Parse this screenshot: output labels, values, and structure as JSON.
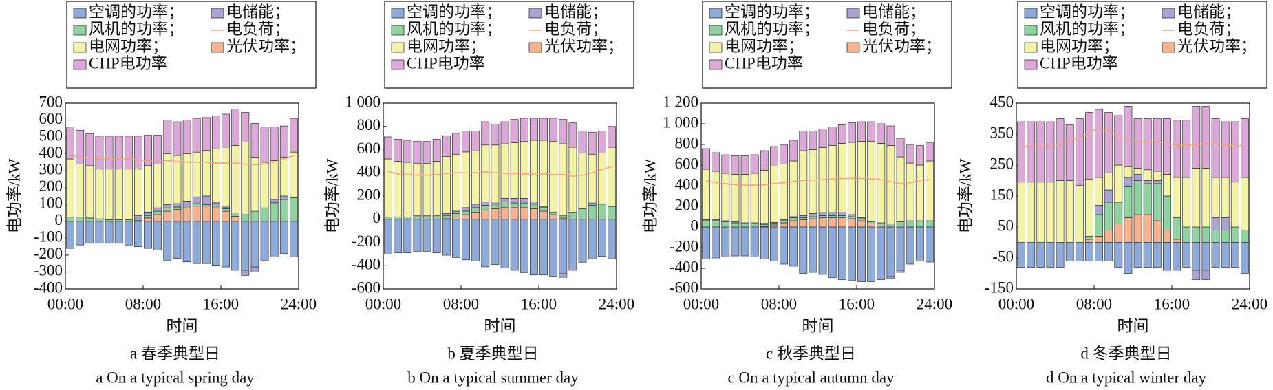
{
  "chart_data": [
    {
      "type": "bar",
      "stacked": true,
      "caption": "a 春季典型日",
      "caption_en": "a On a typical spring day",
      "xlabel": "时间",
      "ylabel": "电功率/kW",
      "x": [
        0,
        1,
        2,
        3,
        4,
        5,
        6,
        7,
        8,
        9,
        10,
        11,
        12,
        13,
        14,
        15,
        16,
        17,
        18,
        19,
        20,
        21,
        22,
        23
      ],
      "xlim": [
        0,
        24
      ],
      "xticks": [
        {
          "value": 0,
          "label": "00:00"
        },
        {
          "value": 8,
          "label": "08:00"
        },
        {
          "value": 16,
          "label": "16:00"
        },
        {
          "value": 24,
          "label": "24:00"
        }
      ],
      "ylim": [
        -400,
        700
      ],
      "yticks": [
        -400,
        -300,
        -200,
        -100,
        0,
        100,
        200,
        300,
        400,
        500,
        600,
        700
      ],
      "series": [
        {
          "name": "空调的功率；",
          "color": "#8eaadb",
          "values": [
            -160,
            -140,
            -130,
            -130,
            -130,
            -130,
            -140,
            -150,
            -160,
            -170,
            -230,
            -220,
            -240,
            -250,
            -250,
            -260,
            -270,
            -290,
            -290,
            -270,
            -230,
            -210,
            -190,
            -210
          ]
        },
        {
          "name": "电储能；",
          "color": "#a9a3d6",
          "values": [
            0,
            0,
            0,
            0,
            0,
            0,
            0,
            20,
            20,
            20,
            20,
            20,
            30,
            40,
            50,
            20,
            10,
            0,
            -30,
            -30,
            0,
            20,
            20,
            0
          ]
        },
        {
          "name": "风机的功率；",
          "color": "#8fd3a0",
          "values": [
            25,
            25,
            20,
            15,
            10,
            10,
            10,
            10,
            15,
            20,
            20,
            15,
            10,
            15,
            10,
            10,
            15,
            20,
            40,
            60,
            80,
            110,
            130,
            140
          ]
        },
        {
          "name": "电负荷；",
          "color": "#f3a07e",
          "type": "line",
          "values": [
            390,
            380,
            375,
            370,
            370,
            370,
            370,
            365,
            360,
            360,
            360,
            355,
            350,
            350,
            350,
            345,
            345,
            345,
            340,
            335,
            340,
            350,
            370,
            390
          ]
        },
        {
          "name": "电网功率；",
          "color": "#f3f3a6",
          "values": [
            345,
            315,
            310,
            295,
            300,
            300,
            300,
            275,
            275,
            260,
            300,
            285,
            280,
            265,
            270,
            320,
            355,
            400,
            430,
            320,
            270,
            230,
            230,
            270
          ]
        },
        {
          "name": "光伏功率；",
          "color": "#f7b18d",
          "values": [
            0,
            0,
            0,
            0,
            0,
            0,
            0,
            5,
            20,
            40,
            60,
            70,
            80,
            90,
            90,
            80,
            60,
            30,
            0,
            0,
            0,
            0,
            0,
            0
          ]
        },
        {
          "name": "CHP电功率",
          "color": "#dca8d8",
          "values": [
            190,
            200,
            190,
            195,
            195,
            195,
            195,
            195,
            180,
            170,
            200,
            200,
            200,
            200,
            195,
            195,
            195,
            215,
            175,
            200,
            210,
            200,
            185,
            200
          ]
        }
      ]
    },
    {
      "type": "bar",
      "stacked": true,
      "caption": "b 夏季典型日",
      "caption_en": "b On a typical summer day",
      "xlabel": "时间",
      "ylabel": "电功率/kW",
      "x": [
        0,
        1,
        2,
        3,
        4,
        5,
        6,
        7,
        8,
        9,
        10,
        11,
        12,
        13,
        14,
        15,
        16,
        17,
        18,
        19,
        20,
        21,
        22,
        23
      ],
      "xlim": [
        0,
        24
      ],
      "xticks": [
        {
          "value": 0,
          "label": "00:00"
        },
        {
          "value": 8,
          "label": "08:00"
        },
        {
          "value": 16,
          "label": "16:00"
        },
        {
          "value": 24,
          "label": "24:00"
        }
      ],
      "ylim": [
        -600,
        1000
      ],
      "yticks": [
        -600,
        -400,
        -200,
        0,
        200,
        400,
        600,
        800,
        {
          "value": 1000,
          "label": "1 000"
        }
      ],
      "series": [
        {
          "name": "空调的功率；",
          "color": "#8eaadb",
          "values": [
            -300,
            -290,
            -290,
            -280,
            -280,
            -290,
            -310,
            -330,
            -350,
            -360,
            -410,
            -390,
            -420,
            -440,
            -460,
            -480,
            -480,
            -490,
            -470,
            -420,
            -370,
            -340,
            -320,
            -340
          ]
        },
        {
          "name": "电储能；",
          "color": "#a9a3d6",
          "values": [
            0,
            0,
            0,
            10,
            10,
            10,
            20,
            20,
            30,
            30,
            30,
            20,
            30,
            40,
            40,
            20,
            10,
            0,
            -30,
            -20,
            0,
            20,
            0,
            0
          ]
        },
        {
          "name": "风机的功率；",
          "color": "#8fd3a0",
          "values": [
            20,
            20,
            20,
            20,
            20,
            20,
            25,
            30,
            30,
            40,
            40,
            40,
            50,
            40,
            40,
            40,
            30,
            20,
            20,
            60,
            90,
            120,
            130,
            110
          ]
        },
        {
          "name": "电负荷；",
          "color": "#f3a07e",
          "type": "line",
          "values": [
            410,
            390,
            385,
            380,
            380,
            385,
            395,
            400,
            400,
            400,
            410,
            400,
            395,
            395,
            390,
            390,
            390,
            385,
            385,
            370,
            380,
            400,
            430,
            450
          ]
        },
        {
          "name": "电网功率；",
          "color": "#f3f3a6",
          "values": [
            500,
            480,
            470,
            450,
            450,
            470,
            490,
            490,
            480,
            460,
            490,
            490,
            470,
            480,
            490,
            530,
            570,
            610,
            620,
            560,
            480,
            420,
            440,
            510
          ]
        },
        {
          "name": "光伏功率；",
          "color": "#f7b18d",
          "values": [
            0,
            0,
            0,
            0,
            0,
            0,
            5,
            20,
            40,
            60,
            80,
            90,
            100,
            100,
            100,
            90,
            70,
            40,
            10,
            0,
            0,
            0,
            0,
            0
          ]
        },
        {
          "name": "CHP电功率",
          "color": "#dca8d8",
          "values": [
            190,
            190,
            190,
            190,
            190,
            190,
            180,
            180,
            180,
            170,
            200,
            180,
            190,
            200,
            200,
            190,
            190,
            200,
            210,
            210,
            190,
            190,
            190,
            180
          ]
        }
      ]
    },
    {
      "type": "bar",
      "stacked": true,
      "caption": "c 秋季典型日",
      "caption_en": "c On a typical autumn day",
      "xlabel": "时间",
      "ylabel": "电功率/kW",
      "x": [
        0,
        1,
        2,
        3,
        4,
        5,
        6,
        7,
        8,
        9,
        10,
        11,
        12,
        13,
        14,
        15,
        16,
        17,
        18,
        19,
        20,
        21,
        22,
        23
      ],
      "xlim": [
        0,
        24
      ],
      "xticks": [
        {
          "value": 0,
          "label": "00:00"
        },
        {
          "value": 8,
          "label": "08:00"
        },
        {
          "value": 16,
          "label": "16:00"
        },
        {
          "value": 24,
          "label": "24:00"
        }
      ],
      "ylim": [
        -600,
        1200
      ],
      "yticks": [
        -600,
        -400,
        -200,
        0,
        200,
        400,
        600,
        800,
        {
          "value": 1000,
          "label": "1 000"
        },
        {
          "value": 1200,
          "label": "1 200"
        }
      ],
      "series": [
        {
          "name": "空调的功率；",
          "color": "#8eaadb",
          "values": [
            -310,
            -300,
            -290,
            -280,
            -280,
            -290,
            -310,
            -330,
            -360,
            -380,
            -450,
            -440,
            -460,
            -490,
            -510,
            -520,
            -530,
            -530,
            -510,
            -480,
            -420,
            -360,
            -330,
            -340
          ]
        },
        {
          "name": "电储能；",
          "color": "#a9a3d6",
          "values": [
            10,
            10,
            10,
            10,
            10,
            10,
            10,
            10,
            10,
            10,
            20,
            30,
            30,
            30,
            30,
            20,
            10,
            0,
            0,
            -20,
            -20,
            0,
            0,
            0
          ]
        },
        {
          "name": "风机的功率；",
          "color": "#8fd3a0",
          "values": [
            60,
            60,
            50,
            40,
            30,
            30,
            20,
            15,
            20,
            30,
            20,
            20,
            20,
            20,
            20,
            20,
            20,
            20,
            30,
            30,
            50,
            60,
            60,
            60
          ]
        },
        {
          "name": "电负荷；",
          "color": "#f3a07e",
          "type": "line",
          "values": [
            450,
            430,
            420,
            410,
            405,
            405,
            410,
            420,
            430,
            440,
            450,
            455,
            460,
            465,
            470,
            470,
            470,
            465,
            460,
            440,
            420,
            430,
            450,
            460
          ]
        },
        {
          "name": "电网功率；",
          "color": "#f3f3a6",
          "values": [
            490,
            470,
            460,
            460,
            470,
            480,
            515,
            545,
            540,
            540,
            630,
            620,
            630,
            650,
            670,
            700,
            740,
            780,
            770,
            760,
            630,
            560,
            540,
            580
          ]
        },
        {
          "name": "光伏功率；",
          "color": "#f7b18d",
          "values": [
            0,
            0,
            0,
            0,
            0,
            0,
            5,
            20,
            40,
            60,
            70,
            80,
            90,
            90,
            90,
            80,
            60,
            30,
            10,
            0,
            0,
            0,
            0,
            0
          ]
        },
        {
          "name": "CHP电功率",
          "color": "#dca8d8",
          "values": [
            200,
            180,
            180,
            180,
            180,
            180,
            190,
            190,
            190,
            200,
            190,
            180,
            180,
            180,
            180,
            190,
            190,
            190,
            190,
            190,
            180,
            180,
            190,
            180
          ]
        }
      ]
    },
    {
      "type": "bar",
      "stacked": true,
      "caption": "d 冬季典型日",
      "caption_en": "d On a typical winter day",
      "xlabel": "时间",
      "ylabel": "电功率/kW",
      "x": [
        0,
        1,
        2,
        3,
        4,
        5,
        6,
        7,
        8,
        9,
        10,
        11,
        12,
        13,
        14,
        15,
        16,
        17,
        18,
        19,
        20,
        21,
        22,
        23
      ],
      "xlim": [
        0,
        24
      ],
      "xticks": [
        {
          "value": 0,
          "label": "00:00"
        },
        {
          "value": 8,
          "label": "08:00"
        },
        {
          "value": 16,
          "label": "16:00"
        },
        {
          "value": 24,
          "label": "24:00"
        }
      ],
      "ylim": [
        -150,
        450
      ],
      "yticks": [
        -150,
        -50,
        50,
        150,
        250,
        350,
        450
      ],
      "series": [
        {
          "name": "空调的功率；",
          "color": "#8eaadb",
          "values": [
            -80,
            -80,
            -80,
            -80,
            -80,
            -60,
            -60,
            -60,
            -60,
            -60,
            -80,
            -100,
            -80,
            -80,
            -80,
            -90,
            -90,
            -80,
            -90,
            -90,
            -80,
            -80,
            -80,
            -100
          ]
        },
        {
          "name": "电储能；",
          "color": "#a9a3d6",
          "values": [
            0,
            0,
            0,
            0,
            0,
            0,
            0,
            0,
            30,
            40,
            0,
            30,
            20,
            10,
            10,
            0,
            0,
            0,
            -30,
            -30,
            40,
            40,
            0,
            0
          ]
        },
        {
          "name": "风机的功率；",
          "color": "#8fd3a0",
          "values": [
            0,
            0,
            0,
            0,
            0,
            0,
            0,
            10,
            70,
            90,
            70,
            100,
            110,
            100,
            120,
            110,
            70,
            50,
            50,
            50,
            40,
            40,
            50,
            40
          ]
        },
        {
          "name": "电负荷；",
          "color": "#f3a07e",
          "type": "line",
          "values": [
            310,
            310,
            310,
            310,
            315,
            330,
            340,
            355,
            370,
            360,
            345,
            330,
            325,
            325,
            325,
            320,
            315,
            315,
            315,
            320,
            320,
            315,
            315,
            310
          ]
        },
        {
          "name": "电网功率；",
          "color": "#f3f3a6",
          "values": [
            195,
            195,
            195,
            195,
            200,
            200,
            185,
            185,
            90,
            55,
            120,
            35,
            20,
            35,
            30,
            70,
            130,
            160,
            190,
            190,
            130,
            130,
            145,
            170
          ]
        },
        {
          "name": "光伏功率；",
          "color": "#f7b18d",
          "values": [
            0,
            0,
            0,
            0,
            0,
            0,
            0,
            10,
            20,
            40,
            60,
            80,
            90,
            90,
            70,
            40,
            10,
            0,
            0,
            0,
            0,
            0,
            0,
            0
          ]
        },
        {
          "name": "CHP电功率",
          "color": "#dca8d8",
          "values": [
            195,
            195,
            195,
            195,
            200,
            180,
            215,
            215,
            220,
            195,
            160,
            195,
            160,
            165,
            170,
            180,
            185,
            185,
            200,
            200,
            190,
            180,
            195,
            190
          ]
        }
      ]
    }
  ]
}
